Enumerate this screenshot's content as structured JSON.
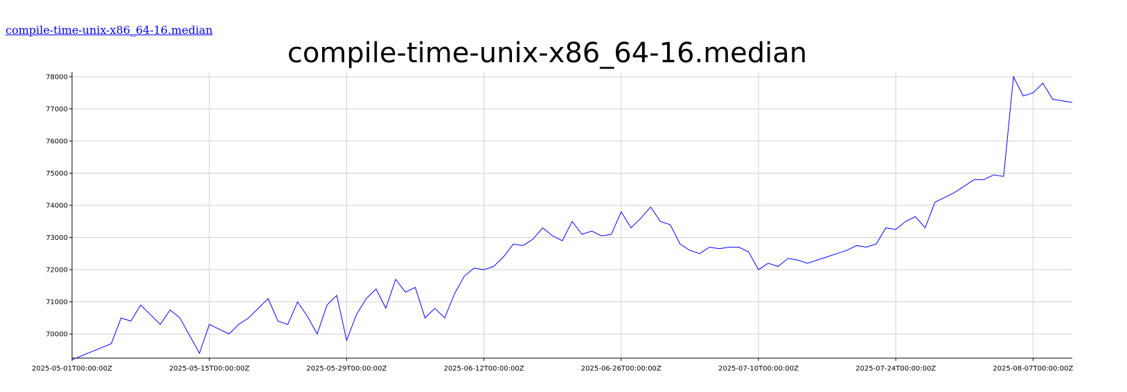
{
  "link": {
    "text": "compile-time-unix-x86_64-16.median"
  },
  "chart_data": {
    "type": "line",
    "title": "compile-time-unix-x86_64-16.median",
    "xlabel": "",
    "ylabel": "",
    "x_axis_type": "date",
    "xlim": [
      "2025-05-01",
      "2025-08-11"
    ],
    "ylim": [
      69250,
      78150
    ],
    "x_ticks": [
      "2025-05-01T00:00:00Z",
      "2025-05-15T00:00:00Z",
      "2025-05-29T00:00:00Z",
      "2025-06-12T00:00:00Z",
      "2025-06-26T00:00:00Z",
      "2025-07-10T00:00:00Z",
      "2025-07-24T00:00:00Z",
      "2025-08-07T00:00:00Z"
    ],
    "y_ticks": [
      70000,
      71000,
      72000,
      73000,
      74000,
      75000,
      76000,
      77000,
      78000
    ],
    "grid": true,
    "color": "#0000ff",
    "series": [
      {
        "x": [
          "2025-05-01",
          "2025-05-05",
          "2025-05-06",
          "2025-05-07",
          "2025-05-08",
          "2025-05-10",
          "2025-05-11",
          "2025-05-12",
          "2025-05-14",
          "2025-05-15",
          "2025-05-17",
          "2025-05-18",
          "2025-05-19",
          "2025-05-20",
          "2025-05-21",
          "2025-05-22",
          "2025-05-23",
          "2025-05-24",
          "2025-05-25",
          "2025-05-26",
          "2025-05-27",
          "2025-05-28",
          "2025-05-29",
          "2025-05-30",
          "2025-05-31",
          "2025-06-01",
          "2025-06-02",
          "2025-06-03",
          "2025-06-04",
          "2025-06-05",
          "2025-06-06",
          "2025-06-07",
          "2025-06-08",
          "2025-06-09",
          "2025-06-10",
          "2025-06-11",
          "2025-06-12",
          "2025-06-13",
          "2025-06-14",
          "2025-06-15",
          "2025-06-16",
          "2025-06-17",
          "2025-06-18",
          "2025-06-19",
          "2025-06-20",
          "2025-06-21",
          "2025-06-22",
          "2025-06-23",
          "2025-06-24",
          "2025-06-25",
          "2025-06-26",
          "2025-06-27",
          "2025-06-28",
          "2025-06-29",
          "2025-06-30",
          "2025-07-01",
          "2025-07-02",
          "2025-07-03",
          "2025-07-04",
          "2025-07-05",
          "2025-07-06",
          "2025-07-07",
          "2025-07-08",
          "2025-07-09",
          "2025-07-10",
          "2025-07-11",
          "2025-07-12",
          "2025-07-13",
          "2025-07-14",
          "2025-07-15",
          "2025-07-16",
          "2025-07-17",
          "2025-07-18",
          "2025-07-19",
          "2025-07-20",
          "2025-07-21",
          "2025-07-22",
          "2025-07-23",
          "2025-07-24",
          "2025-07-25",
          "2025-07-26",
          "2025-07-27",
          "2025-07-28",
          "2025-07-29",
          "2025-07-30",
          "2025-07-31",
          "2025-08-01",
          "2025-08-02",
          "2025-08-03",
          "2025-08-04",
          "2025-08-05",
          "2025-08-06",
          "2025-08-07",
          "2025-08-08",
          "2025-08-09",
          "2025-08-10",
          "2025-08-11"
        ],
        "y": [
          69200,
          69700,
          70500,
          70400,
          70900,
          70300,
          70750,
          70500,
          69400,
          70300,
          70000,
          70300,
          70500,
          70800,
          71100,
          70400,
          70300,
          71000,
          70550,
          70000,
          70900,
          71200,
          69800,
          70600,
          71100,
          71400,
          70800,
          71700,
          71300,
          71450,
          70500,
          70800,
          70500,
          71250,
          71800,
          72050,
          72000,
          72100,
          72400,
          72800,
          72750,
          72950,
          73300,
          73050,
          72900,
          73500,
          73100,
          73200,
          73050,
          73100,
          73800,
          73300,
          73600,
          73950,
          73500,
          73400,
          72800,
          72600,
          72500,
          72700,
          72650,
          72700,
          72700,
          72550,
          72000,
          72200,
          72100,
          72350,
          72300,
          72200,
          72300,
          72400,
          72500,
          72600,
          72750,
          72700,
          72800,
          73300,
          73250,
          73500,
          73650,
          73300,
          74100,
          74250,
          74400,
          74600,
          74800,
          74800,
          74950,
          74900,
          78000,
          77400,
          77500,
          77800,
          77300,
          77250,
          77200
        ]
      }
    ]
  }
}
